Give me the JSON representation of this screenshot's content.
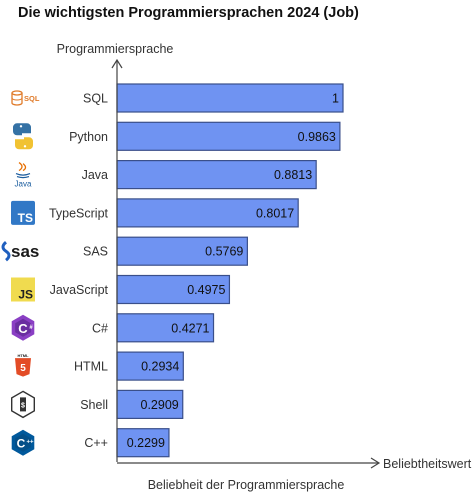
{
  "title": "Die wichtigsten Programmiersprachen 2024 (Job)",
  "chart_data": {
    "type": "bar",
    "orientation": "horizontal",
    "title": "Die wichtigsten Programmiersprachen 2024 (Job)",
    "ylabel": "Programmiersprache",
    "xlabel": "Beliebheit der Programmiersprache",
    "x_axis_end_label": "Beliebtheitswert",
    "categories": [
      "SQL",
      "Python",
      "Java",
      "TypeScript",
      "SAS",
      "JavaScript",
      "C#",
      "HTML",
      "Shell",
      "C++"
    ],
    "values": [
      1,
      0.9863,
      0.8813,
      0.8017,
      0.5769,
      0.4975,
      0.4271,
      0.2934,
      0.2909,
      0.2299
    ],
    "value_labels": [
      "1",
      "0.9863",
      "0.8813",
      "0.8017",
      "0.5769",
      "0.4975",
      "0.4271",
      "0.2934",
      "0.2909",
      "0.2299"
    ],
    "icons": [
      "sql-icon",
      "python-icon",
      "java-icon",
      "typescript-icon",
      "sas-icon",
      "javascript-icon",
      "csharp-icon",
      "html5-icon",
      "shell-icon",
      "cplusplus-icon"
    ],
    "xlim": [
      0,
      1
    ],
    "grid": false,
    "legend": "none",
    "colors": {
      "bar_fill": "#6f93f2",
      "bar_stroke": "#3a4f8a",
      "axis": "#444444"
    }
  }
}
